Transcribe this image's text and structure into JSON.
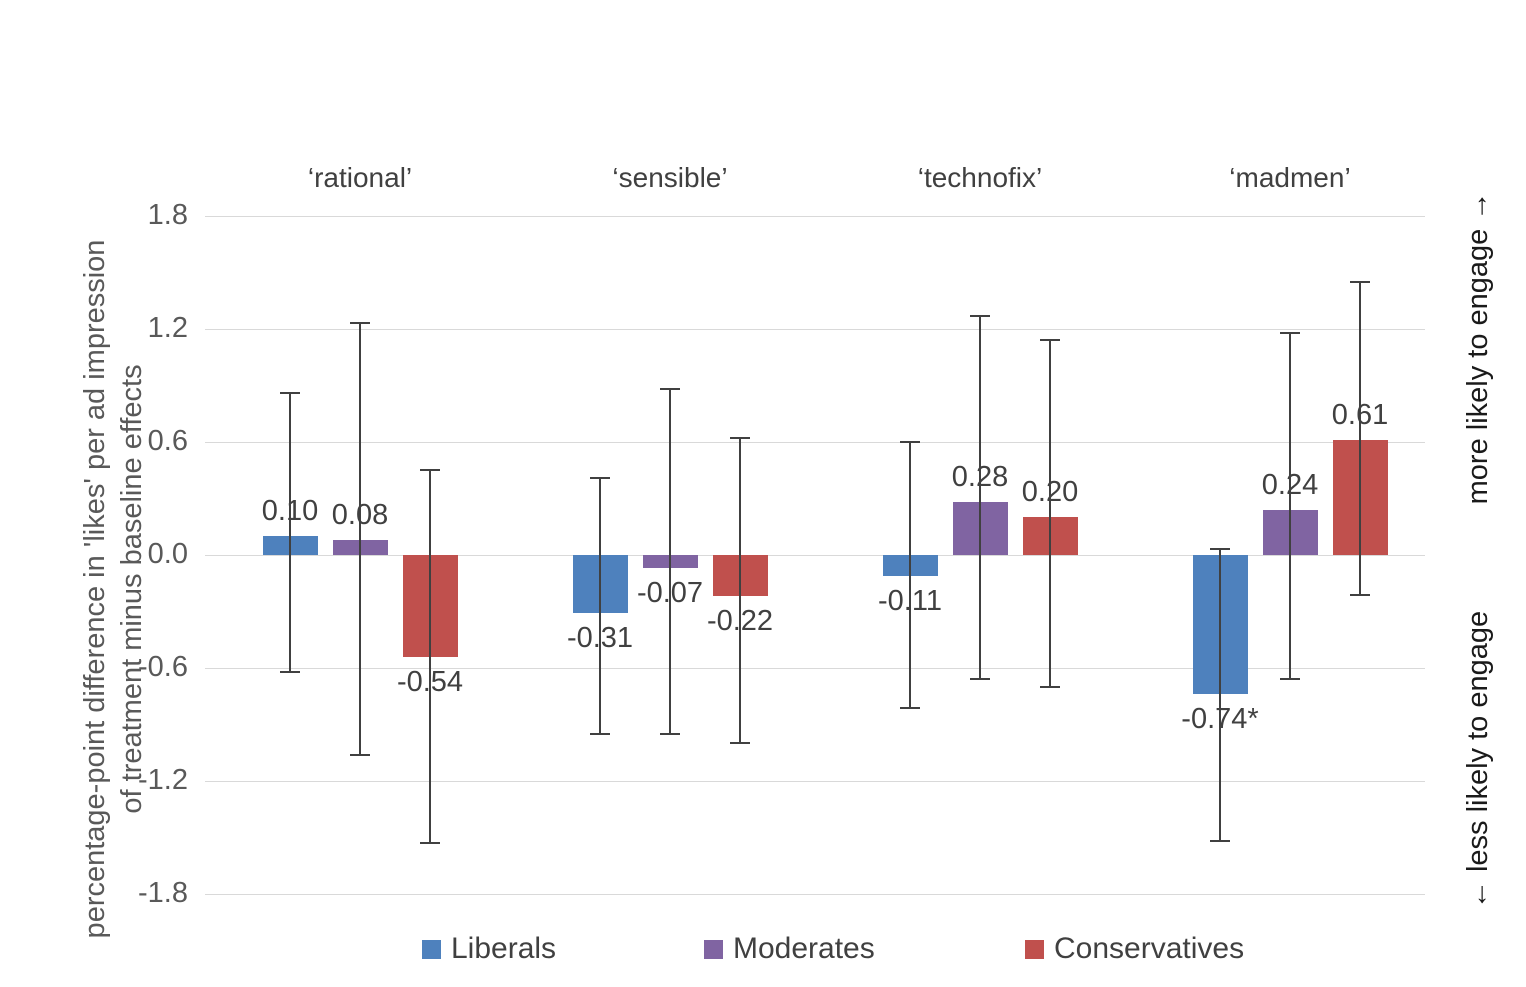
{
  "chart_data": {
    "type": "bar",
    "title": "",
    "ylabel_line1": "percentage-point difference in 'likes' per ad impression",
    "ylabel_line2": "of treatment minus baseline effects",
    "right_top": "more likely to engage →",
    "right_bottom": "← less likely to engage",
    "groups": [
      "‘rational’",
      "‘sensible’",
      "‘technofix’",
      "‘madmen’"
    ],
    "yticks": [
      "1.8",
      "1.2",
      "0.6",
      "0.0",
      "-0.6",
      "-1.2",
      "-1.8"
    ],
    "ylim": [
      -1.8,
      1.8
    ],
    "grid": true,
    "legend_position": "bottom",
    "series": [
      {
        "name": "Liberals",
        "color": "#4E81BD",
        "values": [
          0.1,
          -0.31,
          -0.11,
          -0.74
        ],
        "labels": [
          "0.10",
          "-0.31",
          "-0.11",
          "-0.74*"
        ],
        "error_low": [
          -0.62,
          -0.95,
          -0.81,
          -1.52
        ],
        "error_high": [
          0.86,
          0.41,
          0.6,
          0.03
        ]
      },
      {
        "name": "Moderates",
        "color": "#8064A2",
        "values": [
          0.08,
          -0.07,
          0.28,
          0.24
        ],
        "labels": [
          "0.08",
          "-0.07",
          "0.28",
          "0.24"
        ],
        "error_low": [
          -1.06,
          -0.95,
          -0.66,
          -0.66
        ],
        "error_high": [
          1.23,
          0.88,
          1.27,
          1.18
        ]
      },
      {
        "name": "Conservatives",
        "color": "#C0504D",
        "values": [
          -0.54,
          -0.22,
          0.2,
          0.61
        ],
        "labels": [
          "-0.54",
          "-0.22",
          "0.20",
          "0.61"
        ],
        "error_low": [
          -1.53,
          -1.0,
          -0.7,
          -0.21
        ],
        "error_high": [
          0.45,
          0.62,
          1.14,
          1.45
        ]
      }
    ]
  }
}
